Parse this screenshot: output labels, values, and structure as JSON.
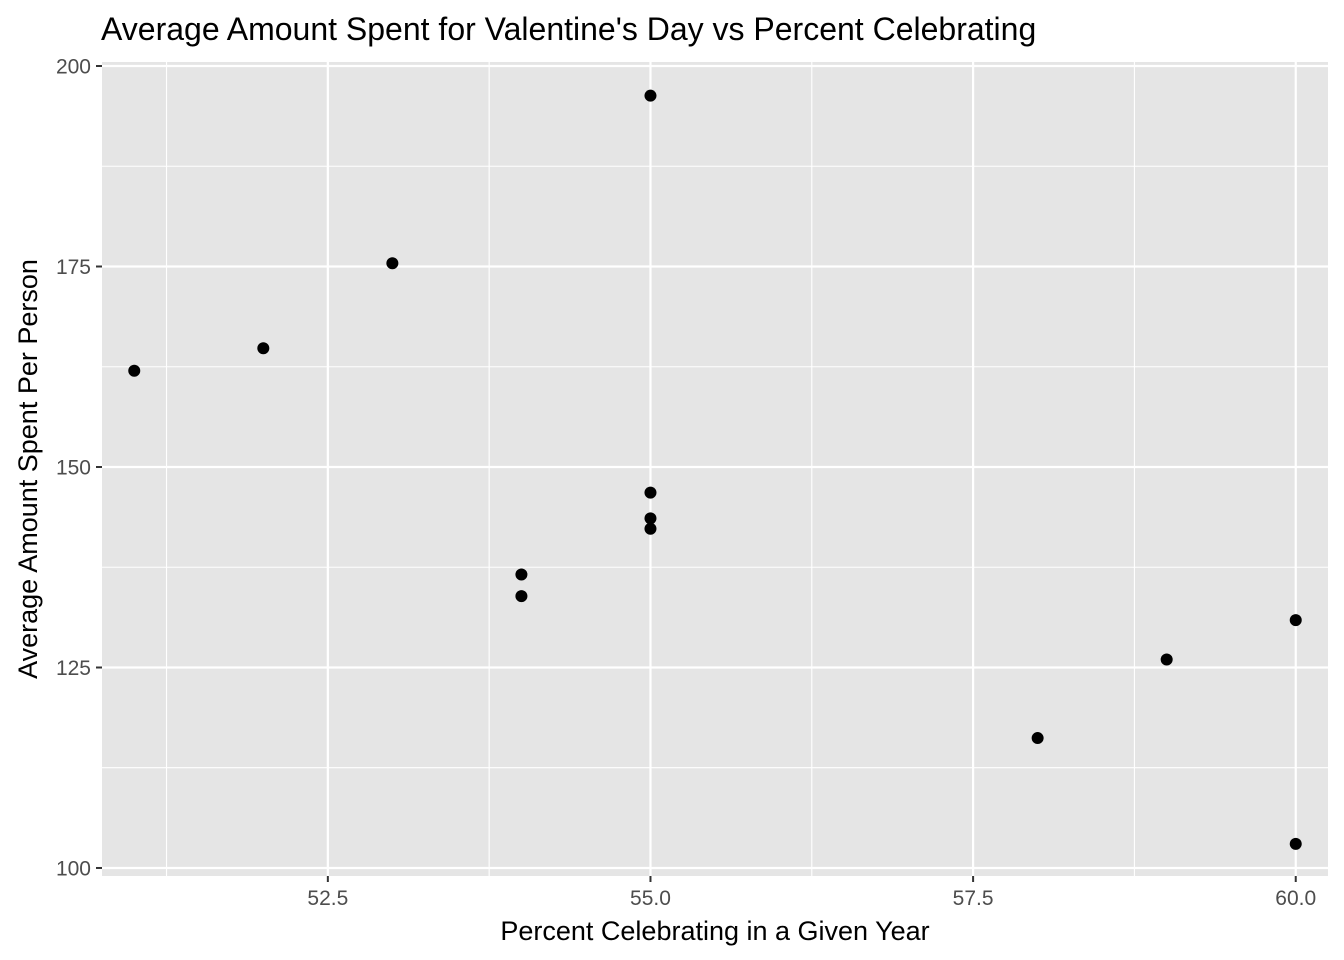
{
  "chart_data": {
    "type": "scatter",
    "title": "Average Amount Spent for Valentine's Day vs Percent Celebrating",
    "xlabel": "Percent Celebrating in a Given Year",
    "ylabel": "Average Amount Spent Per Person",
    "xlim": [
      50.75,
      60.25
    ],
    "ylim": [
      99,
      200.5
    ],
    "x_ticks": [
      52.5,
      55.0,
      57.5,
      60.0
    ],
    "x_tick_labels": [
      "52.5",
      "55.0",
      "57.5",
      "60.0"
    ],
    "y_ticks": [
      100,
      125,
      150,
      175,
      200
    ],
    "y_tick_labels": [
      "100",
      "125",
      "150",
      "175",
      "200"
    ],
    "grid": true,
    "legend": "none",
    "colors": {
      "panel_background": "#e5e5e5",
      "grid": "#ffffff",
      "point": "#000000",
      "tick_label": "#4d4d4d"
    },
    "points": [
      {
        "x": 51,
        "y": 162.0
      },
      {
        "x": 52,
        "y": 164.8
      },
      {
        "x": 53,
        "y": 175.4
      },
      {
        "x": 54,
        "y": 136.6
      },
      {
        "x": 54,
        "y": 133.9
      },
      {
        "x": 55,
        "y": 196.3
      },
      {
        "x": 55,
        "y": 146.8
      },
      {
        "x": 55,
        "y": 143.6
      },
      {
        "x": 55,
        "y": 142.3
      },
      {
        "x": 58,
        "y": 116.2
      },
      {
        "x": 59,
        "y": 126.0
      },
      {
        "x": 60,
        "y": 130.9
      },
      {
        "x": 60,
        "y": 103.0
      }
    ]
  }
}
